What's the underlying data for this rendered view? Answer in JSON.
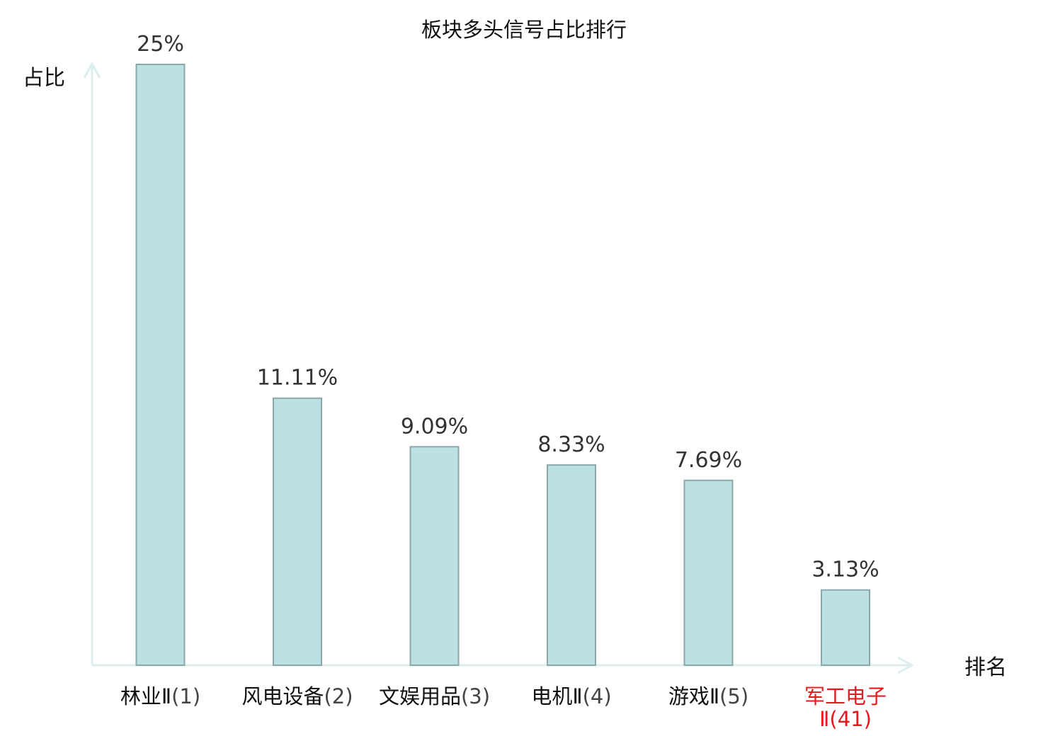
{
  "chart_data": {
    "type": "bar",
    "title": "板块多头信号占比排行",
    "xlabel": "排名",
    "ylabel": "占比",
    "ylim": [
      0,
      25
    ],
    "grid": false,
    "legend": "none",
    "categories": [
      {
        "name": "林业Ⅱ",
        "rank": "(1)"
      },
      {
        "name": "风电设备",
        "rank": "(2)"
      },
      {
        "name": "文娱用品",
        "rank": "(3)"
      },
      {
        "name": "电机Ⅱ",
        "rank": "(4)"
      },
      {
        "name": "游戏Ⅱ",
        "rank": "(5)"
      },
      {
        "name": "军工电子",
        "name_line2": "Ⅱ",
        "rank": "(41)",
        "highlight": true
      }
    ],
    "values": [
      25,
      11.11,
      9.09,
      8.33,
      7.69,
      3.13
    ],
    "value_labels": [
      "25%",
      "11.11%",
      "9.09%",
      "8.33%",
      "7.69%",
      "3.13%"
    ],
    "colors": {
      "bar_fill": "#bde1e3",
      "bar_stroke": "#8aa8aa",
      "axis": "#dcefee",
      "highlight_text": "#e8191e"
    }
  }
}
